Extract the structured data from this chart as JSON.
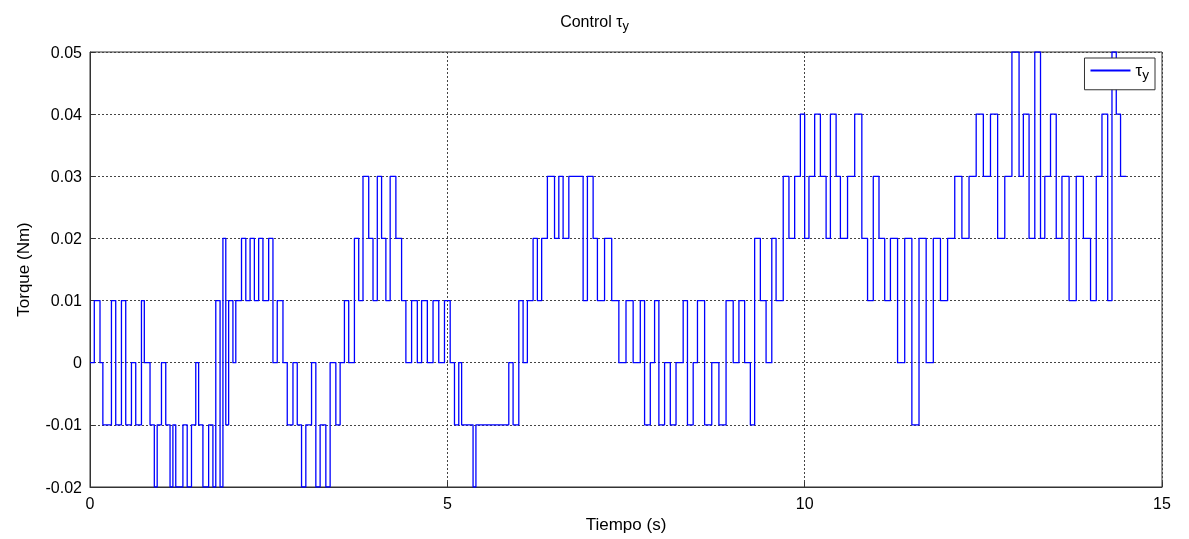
{
  "chart_data": {
    "type": "step",
    "title": "Control τ$_{y}$",
    "xlabel": "Tiempo (s)",
    "ylabel": "Torque (Nm)",
    "legend": "top right",
    "grid": true,
    "xlim": [
      0,
      15
    ],
    "xticks": [
      0,
      5,
      10,
      15
    ],
    "ylim": [
      -0.02,
      0.05
    ],
    "yticks": [
      -0.02,
      -0.01,
      0,
      0.01,
      0.02,
      0.03,
      0.04,
      0.05
    ],
    "series": [
      {
        "name": "τ$_{y}$",
        "color": "#0000ff",
        "x": [
          0,
          0.06,
          0.14,
          0.18,
          0.3,
          0.36,
          0.44,
          0.5,
          0.58,
          0.64,
          0.72,
          0.76,
          0.84,
          0.9,
          0.94,
          1.0,
          1.06,
          1.12,
          1.16,
          1.2,
          1.3,
          1.36,
          1.42,
          1.48,
          1.52,
          1.58,
          1.66,
          1.72,
          1.76,
          1.82,
          1.86,
          1.9,
          1.94,
          2.0,
          2.04,
          2.12,
          2.18,
          2.24,
          2.3,
          2.36,
          2.42,
          2.5,
          2.56,
          2.62,
          2.7,
          2.76,
          2.84,
          2.9,
          2.96,
          3.02,
          3.1,
          3.16,
          3.22,
          3.3,
          3.36,
          3.44,
          3.5,
          3.56,
          3.62,
          3.7,
          3.76,
          3.82,
          3.9,
          3.96,
          4.02,
          4.08,
          4.14,
          4.2,
          4.28,
          4.36,
          4.42,
          4.5,
          4.58,
          4.64,
          4.72,
          4.8,
          4.88,
          4.96,
          5.04,
          5.1,
          5.16,
          5.2,
          5.3,
          5.36,
          5.4,
          5.8,
          5.86,
          5.92,
          6.0,
          6.06,
          6.12,
          6.2,
          6.26,
          6.32,
          6.4,
          6.5,
          6.56,
          6.62,
          6.7,
          6.8,
          6.9,
          6.96,
          7.04,
          7.1,
          7.2,
          7.3,
          7.4,
          7.5,
          7.6,
          7.7,
          7.76,
          7.84,
          7.9,
          7.96,
          8.04,
          8.12,
          8.2,
          8.3,
          8.36,
          8.44,
          8.5,
          8.6,
          8.7,
          8.8,
          8.9,
          9.0,
          9.08,
          9.16,
          9.24,
          9.3,
          9.38,
          9.46,
          9.54,
          9.6,
          9.7,
          9.78,
          9.86,
          9.94,
          10.0,
          10.06,
          10.14,
          10.22,
          10.3,
          10.36,
          10.44,
          10.5,
          10.6,
          10.7,
          10.8,
          10.88,
          10.96,
          11.04,
          11.12,
          11.2,
          11.3,
          11.4,
          11.5,
          11.6,
          11.7,
          11.8,
          11.9,
          12.0,
          12.1,
          12.2,
          12.3,
          12.4,
          12.5,
          12.6,
          12.7,
          12.8,
          12.9,
          13.0,
          13.06,
          13.14,
          13.22,
          13.3,
          13.36,
          13.44,
          13.52,
          13.6,
          13.7,
          13.8,
          13.9,
          14.0,
          14.08,
          14.16,
          14.24,
          14.3,
          14.36,
          14.42,
          14.5
        ],
        "values": [
          0,
          0.01,
          0,
          -0.01,
          0.01,
          -0.01,
          0.01,
          -0.01,
          0,
          -0.01,
          0.01,
          0,
          -0.01,
          -0.02,
          -0.01,
          0,
          -0.01,
          -0.02,
          -0.01,
          -0.02,
          -0.01,
          -0.02,
          -0.01,
          0,
          -0.01,
          -0.02,
          -0.01,
          -0.02,
          0.01,
          -0.02,
          0.02,
          -0.01,
          0.01,
          0,
          0.01,
          0.02,
          0.01,
          0.02,
          0.01,
          0.02,
          0.01,
          0.02,
          0,
          0.01,
          0,
          -0.01,
          0,
          -0.01,
          -0.02,
          -0.01,
          0,
          -0.02,
          -0.01,
          -0.02,
          0,
          -0.01,
          0,
          0.01,
          0,
          0.02,
          0.01,
          0.03,
          0.02,
          0.01,
          0.03,
          0.02,
          0.01,
          0.03,
          0.02,
          0.01,
          0,
          0.01,
          0,
          0.01,
          0,
          0.01,
          0,
          0.01,
          0,
          -0.01,
          0,
          -0.01,
          -0.01,
          -0.02,
          -0.01,
          -0.01,
          0,
          -0.01,
          0.01,
          0,
          0.01,
          0.02,
          0.01,
          0.02,
          0.03,
          0.02,
          0.03,
          0.02,
          0.03,
          0.03,
          0.01,
          0.03,
          0.02,
          0.01,
          0.02,
          0.01,
          0,
          0.01,
          0,
          0.01,
          -0.01,
          0,
          0.01,
          -0.01,
          0,
          -0.01,
          0,
          0.01,
          -0.01,
          0,
          0.01,
          -0.01,
          0,
          -0.01,
          0.01,
          0,
          0.01,
          0,
          -0.01,
          0.02,
          0.01,
          0,
          0.02,
          0.01,
          0.03,
          0.02,
          0.03,
          0.04,
          0.02,
          0.03,
          0.04,
          0.03,
          0.02,
          0.04,
          0.03,
          0.02,
          0.03,
          0.04,
          0.02,
          0.01,
          0.03,
          0.02,
          0.01,
          0.02,
          0,
          0.02,
          -0.01,
          0.02,
          0,
          0.02,
          0.01,
          0.02,
          0.03,
          0.02,
          0.03,
          0.04,
          0.03,
          0.04,
          0.02,
          0.03,
          0.05,
          0.03,
          0.04,
          0.02,
          0.05,
          0.02,
          0.03,
          0.04,
          0.02,
          0.03,
          0.01,
          0.03,
          0.02,
          0.01,
          0.03,
          0.04,
          0.01,
          0.05,
          0.04,
          0.03,
          0.03
        ]
      }
    ]
  }
}
